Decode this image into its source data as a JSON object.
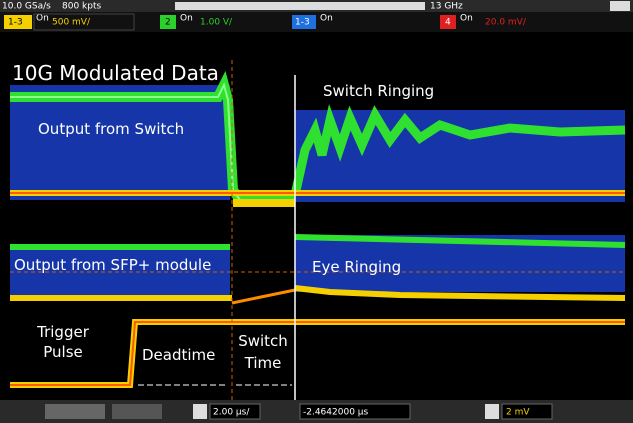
{
  "status_bar": {
    "sample_rate": "10.0 GSa/s",
    "memory": "800 kpts",
    "bandwidth": "13 GHz"
  },
  "channels": [
    {
      "label": "1-3",
      "state": "On",
      "scale": "500 mV/"
    },
    {
      "label": "2",
      "state": "On",
      "scale": "1.00 V/"
    },
    {
      "label": "1-3",
      "state": "On"
    },
    {
      "label": "4",
      "state": "On",
      "scale": "20.0 mV/"
    }
  ],
  "annotations": {
    "title": "10G Modulated Data",
    "switch_ringing": "Switch Ringing",
    "output_switch": "Output from Switch",
    "output_sfp": "Output from SFP+ module",
    "eye_ringing": "Eye Ringing",
    "trigger_pulse": "Trigger Pulse",
    "deadtime": "Deadtime",
    "switch_time": "Switch Time"
  },
  "bottom_bar": {
    "timebase": "2.00 µs/",
    "delay": "-2.4642000 µs",
    "trigger_level": "2 mV"
  }
}
